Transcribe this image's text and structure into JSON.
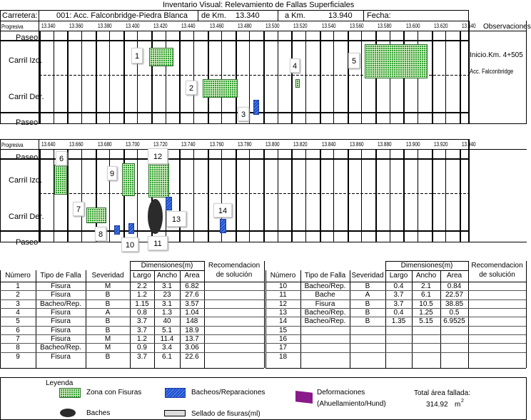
{
  "header": {
    "title": "Inventario Visual: Relevamiento de Fallas Superficiales",
    "carretera_label": "Carretera:",
    "carretera_value": "001:  Acc. Falconbridge-Piedra Blanca",
    "de_km_label": "de Km.",
    "de_km_value": "13.340",
    "a_km_label": "a Km.",
    "a_km_value": "13.940",
    "fecha_label": "Fecha:",
    "observaciones_label": "Observaciones"
  },
  "section1": {
    "progresiva_label": "Progresiva",
    "stations": [
      "13.340",
      "13.360",
      "13.380",
      "13.400",
      "13.420",
      "13.440",
      "13.460",
      "13.480",
      "13.500",
      "13.520",
      "13.540",
      "13.560",
      "13.580",
      "13.600",
      "13.620",
      "13.640"
    ],
    "lanes": [
      "Paseo",
      "Carril Izq.",
      "Carril Der.",
      "Paseo"
    ],
    "note_1": "Inicio.Km. 4+505",
    "note_2": "Acc. Falconbridge",
    "markers": [
      "1",
      "2",
      "3",
      "4",
      "5"
    ]
  },
  "section2": {
    "progresiva_label": "Progresiva",
    "stations": [
      "13.640",
      "13.660",
      "13.680",
      "13.700",
      "13.720",
      "13.740",
      "13.760",
      "13.780",
      "13.800",
      "13.820",
      "13.840",
      "13.860",
      "13.880",
      "13.900",
      "13.920",
      "13.940"
    ],
    "lanes": [
      "Paseo",
      "Carril Izq.",
      "Carril Der.",
      "Paseo"
    ],
    "markers": [
      "6",
      "7",
      "8",
      "9",
      "10",
      "11",
      "12",
      "13",
      "14"
    ]
  },
  "table": {
    "dimensiones_header": "Dimensiones(m)",
    "recomendacion_header_1": "Recomendacion",
    "recomendacion_header_2": "de solución",
    "col_numero": "Número",
    "col_tipo": "Tipo de Falla",
    "col_severidad": "Severidad",
    "col_largo": "Largo",
    "col_ancho": "Ancho",
    "col_area": "Area",
    "left_rows": [
      [
        "1",
        "Fisura",
        "M",
        "2.2",
        "3.1",
        "6.82"
      ],
      [
        "2",
        "Fisura",
        "B",
        "1.2",
        "23",
        "27.6"
      ],
      [
        "3",
        "Bacheo/Rep.",
        "B",
        "1.15",
        "3.1",
        "3.57"
      ],
      [
        "4",
        "Fisura",
        "A",
        "0.8",
        "1.3",
        "1.04"
      ],
      [
        "5",
        "Fisura",
        "B",
        "3.7",
        "40",
        "148"
      ],
      [
        "6",
        "Fisura",
        "B",
        "3.7",
        "5.1",
        "18.9"
      ],
      [
        "7",
        "Fisura",
        "M",
        "1.2",
        "11.4",
        "13.7"
      ],
      [
        "8",
        "Bacheo/Rep.",
        "M",
        "0.9",
        "3.4",
        "3.06"
      ],
      [
        "9",
        "Fisura",
        "B",
        "3.7",
        "6.1",
        "22.6"
      ]
    ],
    "right_rows": [
      [
        "10",
        "Bacheo/Rep.",
        "B",
        "0.4",
        "2.1",
        "0.84"
      ],
      [
        "11",
        "Bache",
        "A",
        "3.7",
        "6.1",
        "22.57"
      ],
      [
        "12",
        "Fisura",
        "B",
        "3.7",
        "10.5",
        "38.85"
      ],
      [
        "13",
        "Bacheo/Rep.",
        "B",
        "0.4",
        "1.25",
        "0.5"
      ],
      [
        "14",
        "Bacheo/Rep.",
        "B",
        "1.35",
        "5.15",
        "6.9525"
      ],
      [
        "15",
        "",
        "",
        "",
        "",
        ""
      ],
      [
        "16",
        "",
        "",
        "",
        "",
        ""
      ],
      [
        "17",
        "",
        "",
        "",
        "",
        ""
      ],
      [
        "18",
        "",
        "",
        "",
        "",
        ""
      ]
    ]
  },
  "legend": {
    "title": "Leyenda",
    "zona_fisuras": "Zona con Fisuras",
    "bacheos": "Bacheos/Reparaciones",
    "deformaciones_1": "Deformaciones",
    "deformaciones_2": "(Ahuellamiento/Hund)",
    "baches": "Baches",
    "sellado": "Sellado de fisuras(ml)",
    "total_label": "Total área fallada:",
    "total_value": "314.92",
    "total_unit": "m",
    "total_exp": "2"
  }
}
